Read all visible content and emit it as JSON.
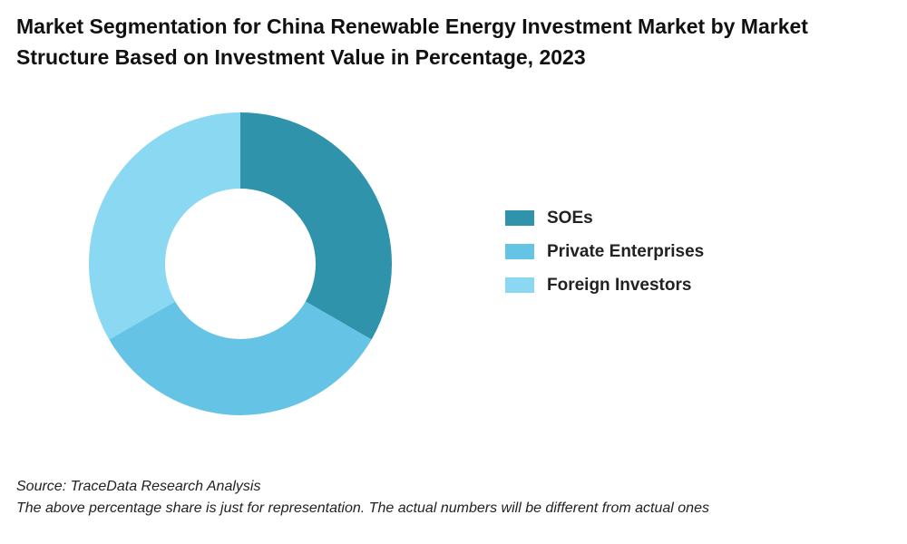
{
  "title": "Market Segmentation for China Renewable Energy Investment Market by Market Structure Based on Investment Value in Percentage, 2023",
  "source": "Source: TraceData Research Analysis",
  "disclaimer": "The above percentage share is just for representation. The actual numbers will be different from actual ones",
  "chart_data": {
    "type": "pie",
    "subtype": "donut",
    "title": "Market Segmentation for China Renewable Energy Investment Market by Market Structure Based on Investment Value in Percentage, 2023",
    "categories": [
      "SOEs",
      "Private Enterprises",
      "Foreign Investors"
    ],
    "values": [
      33.3,
      33.3,
      33.3
    ],
    "colors": [
      "#2e93ab",
      "#65c3e6",
      "#8ad8f2"
    ],
    "legend_placement": "right"
  }
}
